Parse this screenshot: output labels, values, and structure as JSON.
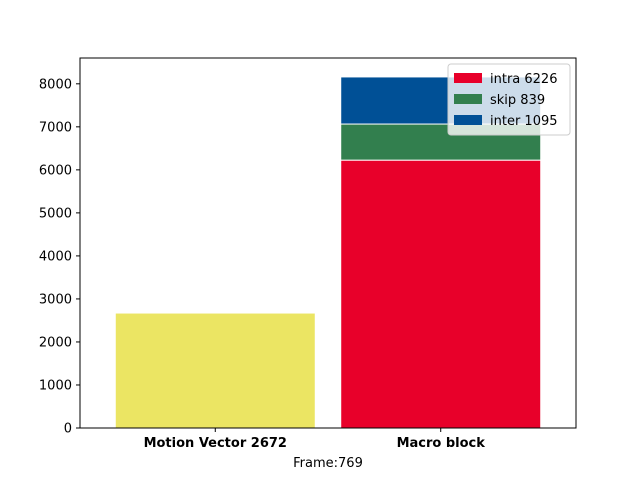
{
  "chart_data": {
    "type": "bar",
    "xlabel": "Frame:769",
    "ylabel": "",
    "ylim": [
      0,
      8600
    ],
    "yticks": [
      0,
      1000,
      2000,
      3000,
      4000,
      5000,
      6000,
      7000,
      8000
    ],
    "categories": [
      "Motion Vector 2672",
      "Macro block"
    ],
    "bars": [
      {
        "category": "Motion Vector 2672",
        "segments": [
          {
            "value": 2672,
            "color": "#ebe563"
          }
        ]
      },
      {
        "category": "Macro block",
        "segments": [
          {
            "name": "intra 6226",
            "value": 6226,
            "color": "#e8002a"
          },
          {
            "name": "skip 839",
            "value": 839,
            "color": "#327f4e"
          },
          {
            "name": "inter 1095",
            "value": 1095,
            "color": "#005096"
          }
        ]
      }
    ],
    "legend": {
      "position": "top-right",
      "entries": [
        {
          "label": "intra 6226",
          "color": "#e8002a"
        },
        {
          "label": "skip 839",
          "color": "#327f4e"
        },
        {
          "label": "inter 1095",
          "color": "#005096"
        }
      ]
    },
    "grid": false
  }
}
